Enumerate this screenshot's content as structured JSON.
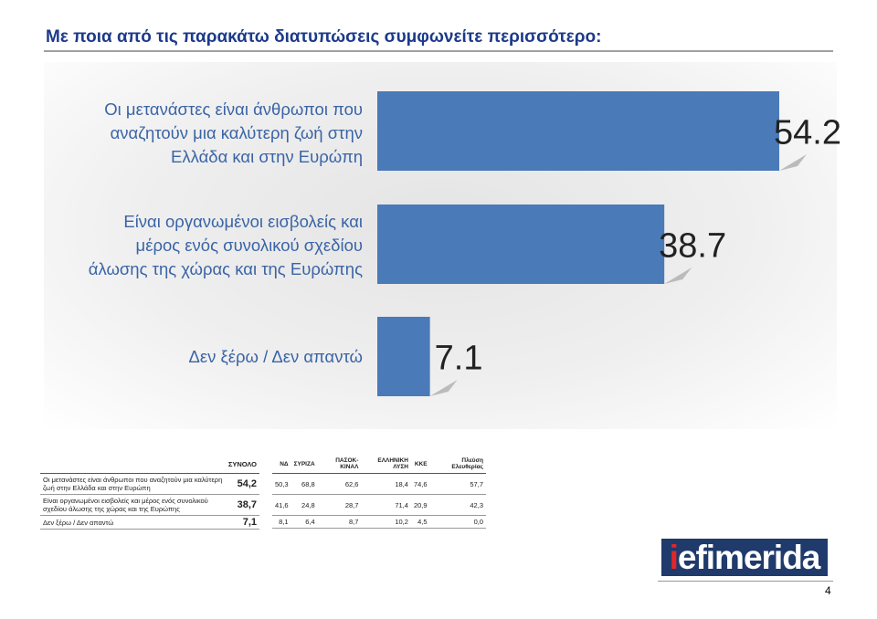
{
  "title": "Με ποια από τις παρακάτω διατυπώσεις συμφωνείτε περισσότερο:",
  "chart_data": {
    "type": "bar",
    "orientation": "horizontal",
    "categories": [
      "Οι μετανάστες είναι άνθρωποι που αναζητούν μια καλύτερη ζωή στην Ελλάδα και στην Ευρώπη",
      "Είναι οργανωμένοι εισβολείς και μέρος ενός συνολικού σχεδίου άλωσης της χώρας και της Ευρώπης",
      "Δεν ξέρω / Δεν απαντώ"
    ],
    "category_lines": [
      [
        "Οι μετανάστες είναι άνθρωποι που",
        "αναζητούν μια καλύτερη ζωή στην",
        "Ελλάδα και στην Ευρώπη"
      ],
      [
        "Είναι οργανωμένοι εισβολείς και",
        "μέρος ενός συνολικού σχεδίου",
        "άλωσης της χώρας και της Ευρώπης"
      ],
      [
        "Δεν ξέρω / Δεν απαντώ"
      ]
    ],
    "values": [
      54.2,
      38.7,
      7.1
    ],
    "data_labels": [
      "54.2",
      "38.7",
      "7.1"
    ],
    "xlim": [
      0,
      54.2
    ],
    "grid": false,
    "bar_color": "#4a7ab8"
  },
  "table": {
    "headers": [
      "ΣΥΝΟΛΟ",
      "ΝΔ",
      "ΣΥΡΙΖΑ",
      "ΠΑΣΟΚ-ΚΙΝΑΛ",
      "ΕΛΛΗΝΙΚΗ ΛΥΣΗ",
      "ΚΚΕ",
      "Πλεύση Ελευθερίας"
    ],
    "rows": [
      {
        "label": "Οι μετανάστες είναι άνθρωποι που αναζητούν μια καλύτερη ζωή στην Ελλάδα και στην Ευρώπη",
        "total": "54,2",
        "values": [
          "50,3",
          "68,8",
          "62,6",
          "18,4",
          "74,6",
          "57,7"
        ]
      },
      {
        "label": "Είναι οργανωμένοι εισβολείς και μέρος ενός συνολικού σχεδίου άλωσης της χώρας και της Ευρώπης",
        "total": "38,7",
        "values": [
          "41,6",
          "24,8",
          "28,7",
          "71,4",
          "20,9",
          "42,3"
        ]
      },
      {
        "label": "Δεν ξέρω / Δεν απαντώ",
        "total": "7,1",
        "values": [
          "8,1",
          "6,4",
          "8,7",
          "10,2",
          "4,5",
          "0,0"
        ]
      }
    ]
  },
  "logo": {
    "prefix": "i",
    "rest": "efimerida"
  },
  "page_number": "4"
}
